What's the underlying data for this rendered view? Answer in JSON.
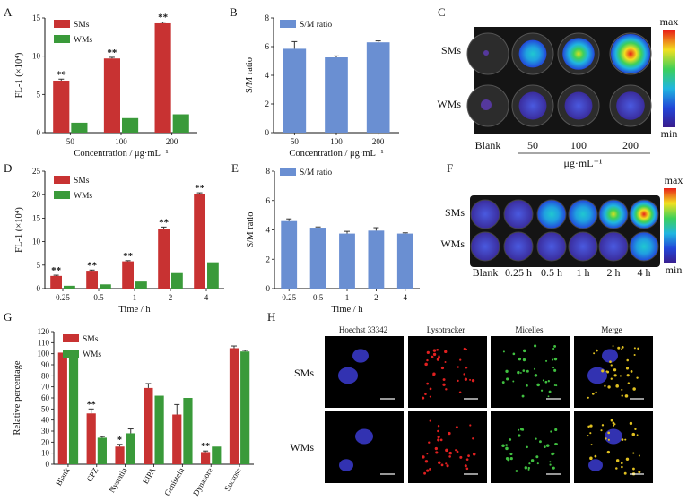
{
  "colors": {
    "sm": "#c83232",
    "wm": "#3a9a3a",
    "ratio": "#6a8fd2",
    "err": "#333333"
  },
  "panels": {
    "A": {
      "letter": "A"
    },
    "B": {
      "letter": "B"
    },
    "C": {
      "letter": "C"
    },
    "D": {
      "letter": "D"
    },
    "E": {
      "letter": "E"
    },
    "F": {
      "letter": "F"
    },
    "G": {
      "letter": "G"
    },
    "H": {
      "letter": "H"
    }
  },
  "chart_data": [
    {
      "id": "A",
      "type": "bar",
      "categories": [
        "50",
        "100",
        "200"
      ],
      "series": [
        {
          "name": "SMs",
          "values": [
            6.8,
            9.7,
            14.3
          ],
          "err": [
            0.2,
            0.15,
            0.15
          ],
          "sig": [
            "**",
            "**",
            "**"
          ]
        },
        {
          "name": "WMs",
          "values": [
            1.3,
            1.9,
            2.4
          ],
          "err": [
            0,
            0,
            0
          ]
        }
      ],
      "xlabel": "Concentration / μg·mL⁻¹",
      "ylabel": "FL-1 (×10⁴)",
      "ylim": [
        0,
        15
      ],
      "yticks": [
        "0",
        "5",
        "10",
        "15"
      ],
      "legend": "top-left"
    },
    {
      "id": "B",
      "type": "bar",
      "categories": [
        "50",
        "100",
        "200"
      ],
      "series": [
        {
          "name": "S/M ratio",
          "values": [
            5.85,
            5.25,
            6.3
          ],
          "err": [
            0.5,
            0.1,
            0.1
          ]
        }
      ],
      "xlabel": "Concentration / μg·mL⁻¹",
      "ylabel": "S/M ratio",
      "ylim": [
        0,
        8
      ],
      "yticks": [
        "0",
        "2",
        "4",
        "6",
        "8"
      ],
      "legend": "top-left"
    },
    {
      "id": "D",
      "type": "bar",
      "categories": [
        "0.25",
        "0.5",
        "1",
        "2",
        "4"
      ],
      "series": [
        {
          "name": "SMs",
          "values": [
            2.7,
            3.8,
            5.8,
            12.7,
            20.2
          ],
          "err": [
            0.15,
            0.15,
            0.15,
            0.4,
            0.2
          ],
          "sig": [
            "**",
            "**",
            "**",
            "**",
            "**"
          ]
        },
        {
          "name": "WMs",
          "values": [
            0.6,
            0.9,
            1.5,
            3.3,
            5.6
          ],
          "err": [
            0,
            0,
            0,
            0,
            0
          ]
        }
      ],
      "xlabel": "Time / h",
      "ylabel": "FL-1 (×10⁴)",
      "ylim": [
        0,
        25
      ],
      "yticks": [
        "0",
        "5",
        "10",
        "15",
        "20",
        "25"
      ],
      "legend": "top-left"
    },
    {
      "id": "E",
      "type": "bar",
      "categories": [
        "0.25",
        "0.5",
        "1",
        "2",
        "4"
      ],
      "series": [
        {
          "name": "S/M ratio",
          "values": [
            4.6,
            4.15,
            3.75,
            3.95,
            3.75
          ],
          "err": [
            0.15,
            0.05,
            0.15,
            0.2,
            0.05
          ]
        }
      ],
      "xlabel": "Time / h",
      "ylabel": "S/M ratio",
      "ylim": [
        0,
        8
      ],
      "yticks": [
        "0",
        "2",
        "4",
        "6",
        "8"
      ],
      "legend": "top-left"
    },
    {
      "id": "G",
      "type": "bar",
      "categories": [
        "Blank",
        "CPZ",
        "Nystatin",
        "EIPA",
        "Genistein",
        "Dynasore",
        "Sucrose"
      ],
      "series": [
        {
          "name": "SMs",
          "values": [
            101,
            46,
            16,
            69,
            45,
            11,
            105
          ],
          "err": [
            0,
            4,
            2,
            4,
            9,
            1,
            2
          ],
          "sig": [
            "",
            "**",
            "*",
            "",
            "",
            "**",
            ""
          ]
        },
        {
          "name": "WMs",
          "values": [
            101,
            24,
            28,
            62,
            60,
            16,
            102
          ],
          "err": [
            0,
            1,
            4,
            0,
            0,
            0,
            1
          ]
        }
      ],
      "xlabel": "",
      "ylabel": "Relative percentage",
      "ylim": [
        0,
        120
      ],
      "yticks": [
        "0",
        "10",
        "20",
        "30",
        "40",
        "50",
        "60",
        "70",
        "80",
        "90",
        "100",
        "110",
        "120"
      ],
      "legend": "top-left"
    }
  ],
  "panelC": {
    "row_labels": [
      "SMs",
      "WMs"
    ],
    "col_labels": [
      "Blank",
      "50",
      "100",
      "200"
    ],
    "unit": "μg·mL⁻¹",
    "scale_max": "max",
    "scale_min": "min",
    "sm_intensity": [
      0.05,
      0.45,
      0.65,
      1.0
    ],
    "wm_intensity": [
      0.05,
      0.12,
      0.12,
      0.15
    ]
  },
  "panelF": {
    "row_labels": [
      "SMs",
      "WMs"
    ],
    "col_labels": [
      "Blank",
      "0.25 h",
      "0.5 h",
      "1 h",
      "2 h",
      "4 h"
    ],
    "scale_max": "max",
    "scale_min": "min",
    "sm_intensity": [
      0.1,
      0.25,
      0.35,
      0.5,
      0.75,
      1.0
    ],
    "wm_intensity": [
      0.05,
      0.08,
      0.1,
      0.15,
      0.25,
      0.35
    ]
  },
  "panelH": {
    "columns": [
      "Hoechst 33342",
      "Lysotracker",
      "Micelles",
      "Merge"
    ],
    "rows": [
      "SMs",
      "WMs"
    ],
    "scalebar": "20 μm"
  }
}
